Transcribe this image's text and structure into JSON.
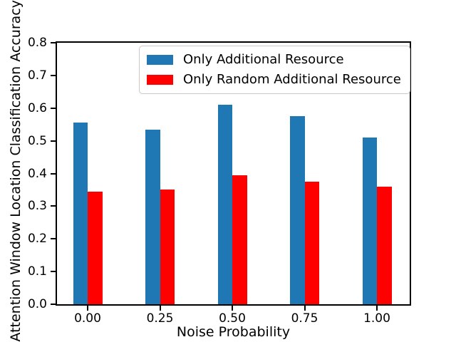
{
  "chart_data": {
    "type": "bar",
    "title": "",
    "xlabel": "Noise Probability",
    "ylabel": "Attention Window Location Classification Accuracy",
    "categories": [
      "0.00",
      "0.25",
      "0.50",
      "0.75",
      "1.00"
    ],
    "series": [
      {
        "name": "Only Additional Resource",
        "color": "#1f77b4",
        "values": [
          0.555,
          0.535,
          0.61,
          0.575,
          0.51
        ]
      },
      {
        "name": "Only Random Additional Resource",
        "color": "#ff0000",
        "values": [
          0.345,
          0.35,
          0.395,
          0.375,
          0.36
        ]
      }
    ],
    "ylim": [
      0.0,
      0.8
    ],
    "yticks": [
      "0.0",
      "0.1",
      "0.2",
      "0.3",
      "0.4",
      "0.5",
      "0.6",
      "0.7",
      "0.8"
    ],
    "grid": false,
    "legend_position": "upper center",
    "axis_color": "#000000",
    "background_color": "#ffffff"
  }
}
